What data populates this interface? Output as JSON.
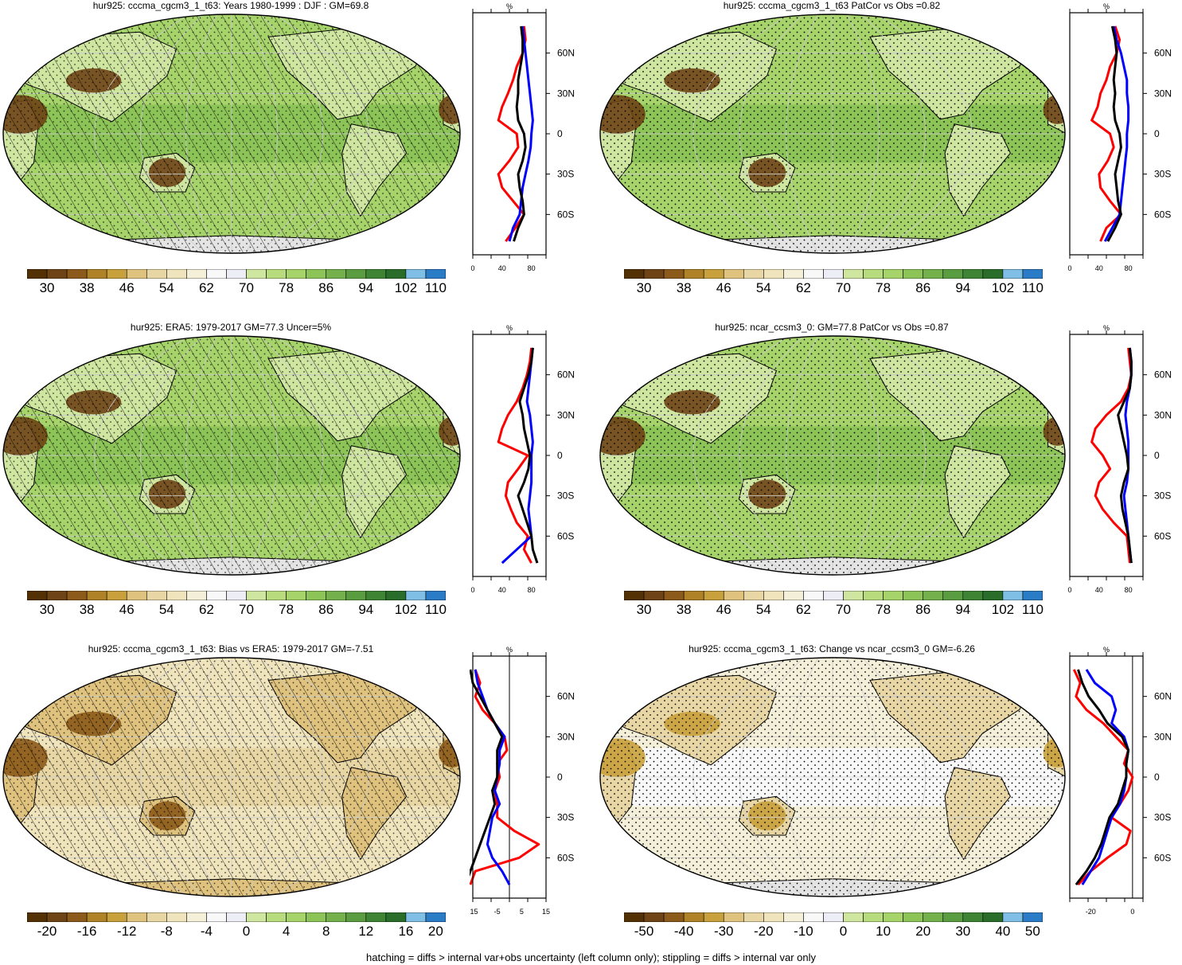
{
  "footnote": "hatching = diffs > internal var+obs uncertainty (left column only); stippling = diffs > internal var only",
  "colors": {
    "abs_scale": [
      "#543005",
      "#6e4315",
      "#8c5a1a",
      "#b08228",
      "#c9a13c",
      "#dfc27d",
      "#e8d7a5",
      "#f0e4bd",
      "#f4efd9",
      "#f8f8f8",
      "#ededf5",
      "#cfe6a0",
      "#b7db7d",
      "#a6d36a",
      "#8cc457",
      "#74b14c",
      "#5a9d41",
      "#3e8434",
      "#2a6d2a",
      "#7fbfe6",
      "#2b7cc7"
    ],
    "profile_red": "#ff0000",
    "profile_blue": "#0000ff",
    "profile_black": "#000000"
  },
  "lat_ticks": [
    "60N",
    "30N",
    "0",
    "30S",
    "60S"
  ],
  "panels": [
    {
      "title": "hur925: cccma_cgcm3_1_t63: Years 1980-1999 : DJF : GM=69.8",
      "map_kind": "abs",
      "hatch": "hatch",
      "cbar_labels": [
        "30",
        "38",
        "46",
        "54",
        "62",
        "70",
        "78",
        "86",
        "94",
        "102",
        "110"
      ],
      "profile": {
        "xticks": [
          "0",
          "40",
          "80"
        ],
        "unit": "%",
        "xlim": [
          0,
          100
        ],
        "vline": null,
        "lat": [
          80,
          70,
          60,
          50,
          40,
          30,
          20,
          10,
          0,
          -10,
          -20,
          -30,
          -40,
          -50,
          -60,
          -70,
          -80
        ],
        "red": [
          70,
          72,
          68,
          60,
          55,
          48,
          40,
          35,
          60,
          62,
          50,
          35,
          40,
          55,
          70,
          58,
          45
        ],
        "blue": [
          68,
          70,
          72,
          74,
          76,
          78,
          80,
          82,
          80,
          79,
          76,
          72,
          68,
          66,
          64,
          55,
          50
        ],
        "black": [
          66,
          68,
          68,
          65,
          62,
          62,
          60,
          62,
          70,
          72,
          68,
          62,
          64,
          68,
          70,
          62,
          56
        ]
      }
    },
    {
      "title": "hur925: cccma_cgcm3_1_t63 PatCor vs Obs =0.82",
      "map_kind": "abs",
      "hatch": "stipple",
      "cbar_labels": [
        "30",
        "38",
        "46",
        "54",
        "62",
        "70",
        "78",
        "86",
        "94",
        "102",
        "110"
      ],
      "profile": {
        "xticks": [
          "0",
          "40",
          "80"
        ],
        "unit": "%",
        "xlim": [
          0,
          100
        ],
        "vline": null,
        "lat": [
          80,
          70,
          60,
          50,
          40,
          30,
          20,
          10,
          0,
          -10,
          -20,
          -30,
          -40,
          -50,
          -60,
          -70,
          -80
        ],
        "red": [
          62,
          68,
          64,
          55,
          50,
          42,
          38,
          30,
          55,
          60,
          52,
          40,
          42,
          55,
          70,
          50,
          42
        ],
        "blue": [
          60,
          64,
          70,
          74,
          78,
          78,
          80,
          80,
          78,
          78,
          76,
          74,
          72,
          70,
          68,
          58,
          48
        ],
        "black": [
          58,
          62,
          64,
          62,
          60,
          62,
          60,
          62,
          68,
          70,
          66,
          62,
          64,
          66,
          70,
          62,
          52
        ]
      }
    },
    {
      "title": "hur925: ERA5: 1979-2017 GM=77.3 Uncer=5%",
      "map_kind": "abs",
      "hatch": "hatch",
      "cbar_labels": [
        "30",
        "38",
        "46",
        "54",
        "62",
        "70",
        "78",
        "86",
        "94",
        "102",
        "110"
      ],
      "profile": {
        "xticks": [
          "0",
          "40",
          "80"
        ],
        "unit": "%",
        "xlim": [
          0,
          100
        ],
        "vline": null,
        "lat": [
          80,
          70,
          60,
          50,
          40,
          30,
          20,
          10,
          0,
          -10,
          -20,
          -30,
          -40,
          -50,
          -60,
          -70,
          -80
        ],
        "red": [
          80,
          78,
          74,
          68,
          60,
          48,
          40,
          35,
          75,
          62,
          48,
          45,
          52,
          60,
          75,
          70,
          80
        ],
        "blue": [
          82,
          80,
          78,
          76,
          74,
          78,
          80,
          82,
          80,
          80,
          80,
          78,
          76,
          78,
          80,
          60,
          40
        ],
        "black": [
          82,
          80,
          76,
          70,
          64,
          68,
          70,
          74,
          78,
          76,
          70,
          62,
          68,
          74,
          80,
          82,
          88
        ]
      }
    },
    {
      "title": "hur925: ncar_ccsm3_0: GM=77.8 PatCor vs Obs =0.87",
      "map_kind": "abs",
      "hatch": "stipple",
      "cbar_labels": [
        "30",
        "38",
        "46",
        "54",
        "62",
        "70",
        "78",
        "86",
        "94",
        "102",
        "110"
      ],
      "profile": {
        "xticks": [
          "0",
          "40",
          "80"
        ],
        "unit": "%",
        "xlim": [
          0,
          100
        ],
        "vline": null,
        "lat": [
          80,
          70,
          60,
          50,
          40,
          30,
          20,
          10,
          0,
          -10,
          -20,
          -30,
          -40,
          -50,
          -60,
          -70,
          -80
        ],
        "red": [
          80,
          82,
          84,
          80,
          70,
          50,
          35,
          30,
          45,
          55,
          40,
          35,
          45,
          60,
          78,
          80,
          82
        ],
        "blue": [
          82,
          84,
          84,
          82,
          78,
          76,
          78,
          80,
          80,
          80,
          78,
          74,
          76,
          78,
          80,
          82,
          84
        ],
        "black": [
          82,
          84,
          84,
          82,
          74,
          66,
          70,
          74,
          78,
          80,
          74,
          70,
          72,
          76,
          80,
          82,
          84
        ]
      }
    },
    {
      "title": "hur925: cccma_cgcm3_1_t63: Bias vs ERA5: 1979-2017 GM=-7.51",
      "map_kind": "bias",
      "hatch": "hatch",
      "cbar_labels": [
        "-20",
        "-16",
        "-12",
        "-8",
        "-4",
        "0",
        "4",
        "8",
        "12",
        "16",
        "20"
      ],
      "profile": {
        "xticks": [
          "-15",
          "-5",
          "5",
          "15"
        ],
        "unit": "%",
        "xlim": [
          -15,
          15
        ],
        "vline": 0,
        "lat": [
          80,
          70,
          60,
          50,
          40,
          30,
          20,
          10,
          0,
          -10,
          -20,
          -30,
          -40,
          -50,
          -60,
          -70,
          -80
        ],
        "red": [
          -14,
          -12,
          -14,
          -11,
          -6,
          -2,
          -1,
          -5,
          -4,
          -6,
          -5,
          -5,
          2,
          12,
          4,
          -14,
          -16
        ],
        "blue": [
          -14,
          -13,
          -11,
          -9,
          -6,
          -2,
          -4,
          -4,
          -5,
          -6,
          -4,
          -7,
          -8,
          -9,
          -7,
          -3,
          0
        ],
        "black": [
          -16,
          -15,
          -12,
          -9,
          -6,
          -3,
          -5,
          -5,
          -5,
          -7,
          -6,
          -8,
          -10,
          -12,
          -14,
          -16,
          -18
        ]
      }
    },
    {
      "title": "hur925: cccma_cgcm3_1_t63: Change vs ncar_ccsm3_0 GM=-6.26",
      "map_kind": "change",
      "hatch": "stipple",
      "cbar_labels": [
        "-50",
        "-40",
        "-30",
        "-20",
        "-10",
        "0",
        "10",
        "20",
        "30",
        "40",
        "50"
      ],
      "profile": {
        "xticks": [
          "-20",
          "0"
        ],
        "unit": "%",
        "xlim": [
          -30,
          5
        ],
        "vline": 0,
        "lat": [
          80,
          70,
          60,
          50,
          40,
          30,
          20,
          10,
          0,
          -10,
          -20,
          -30,
          -40,
          -50,
          -60,
          -70,
          -80
        ],
        "red": [
          -28,
          -25,
          -27,
          -22,
          -14,
          -8,
          -2,
          -4,
          0,
          -2,
          -6,
          -10,
          -1,
          -3,
          -12,
          -20,
          -26
        ],
        "blue": [
          -22,
          -18,
          -10,
          -8,
          -10,
          -4,
          -2,
          -3,
          -3,
          -4,
          -6,
          -10,
          -12,
          -14,
          -16,
          -20,
          -24
        ],
        "black": [
          -26,
          -24,
          -21,
          -16,
          -12,
          -5,
          -2,
          -3,
          -3,
          -5,
          -7,
          -11,
          -13,
          -15,
          -18,
          -22,
          -27
        ]
      }
    }
  ]
}
